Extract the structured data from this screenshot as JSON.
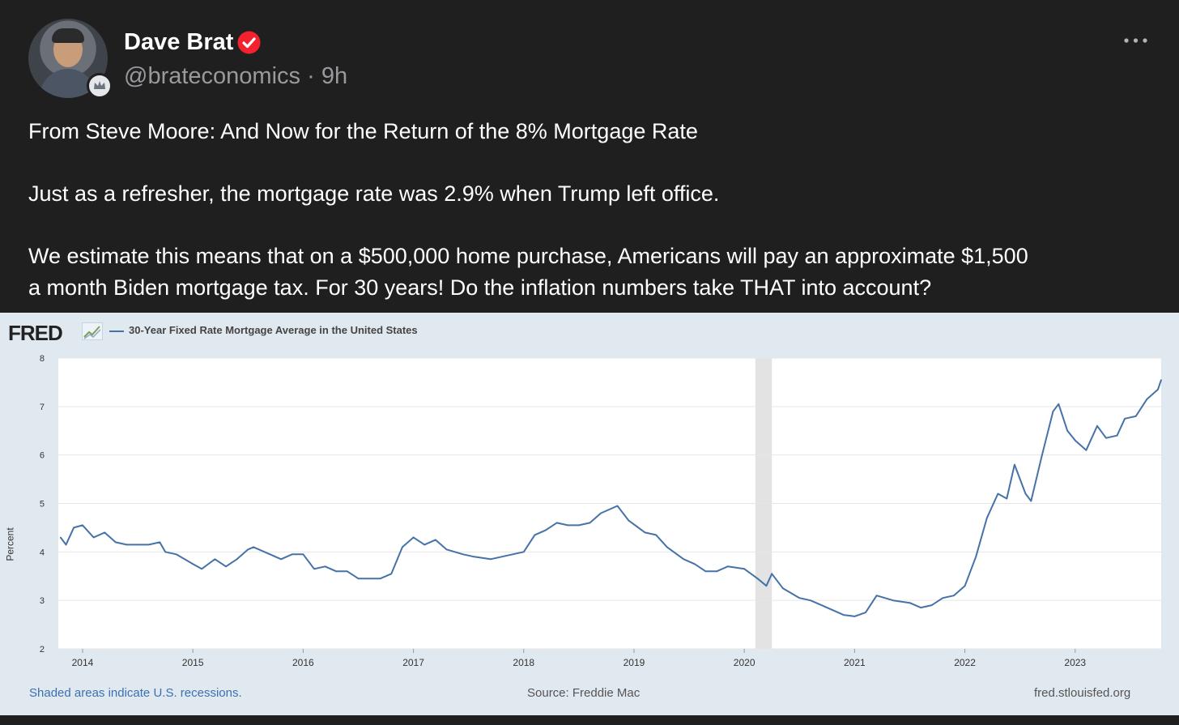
{
  "author": {
    "name": "Dave Brat",
    "handle": "@brateconomics",
    "separator": "·",
    "age": "9h",
    "verified_icon": "verified-check-icon",
    "avatar_badge_icon": "crown-badge-icon"
  },
  "post": {
    "paragraphs": [
      "From Steve Moore:  And Now for the Return of the 8% Mortgage Rate",
      "Just as a refresher, the mortgage rate was 2.9% when Trump left office.",
      "We estimate this means that on a $500,000 home purchase, Americans will pay an approximate $1,500",
      "a month Biden mortgage tax. For 30 years!  Do the inflation numbers take THAT into account?"
    ]
  },
  "menu": {
    "icon": "more-horizontal-icon"
  },
  "colors": {
    "background": "#1f1f20",
    "verified": "#f4212e",
    "chart_line": "#4572a7",
    "chart_bg": "#e1e9f0",
    "recession": "#e3e3e3"
  },
  "chart_data": {
    "type": "line",
    "source_logo": "FRED",
    "series": [
      {
        "name": "30-Year Fixed Rate Mortgage Average in the United States",
        "points": [
          [
            "2013.8",
            4.3
          ],
          [
            "2013.85",
            4.15
          ],
          [
            "2013.92",
            4.5
          ],
          [
            "2014.0",
            4.55
          ],
          [
            "2014.1",
            4.3
          ],
          [
            "2014.2",
            4.4
          ],
          [
            "2014.3",
            4.2
          ],
          [
            "2014.4",
            4.15
          ],
          [
            "2014.5",
            4.15
          ],
          [
            "2014.6",
            4.15
          ],
          [
            "2014.7",
            4.2
          ],
          [
            "2014.75",
            4.0
          ],
          [
            "2014.85",
            3.95
          ],
          [
            "2015.0",
            3.75
          ],
          [
            "2015.08",
            3.65
          ],
          [
            "2015.2",
            3.85
          ],
          [
            "2015.3",
            3.7
          ],
          [
            "2015.4",
            3.85
          ],
          [
            "2015.5",
            4.05
          ],
          [
            "2015.55",
            4.1
          ],
          [
            "2015.7",
            3.95
          ],
          [
            "2015.8",
            3.85
          ],
          [
            "2015.9",
            3.95
          ],
          [
            "2016.0",
            3.95
          ],
          [
            "2016.1",
            3.65
          ],
          [
            "2016.2",
            3.7
          ],
          [
            "2016.3",
            3.6
          ],
          [
            "2016.4",
            3.6
          ],
          [
            "2016.5",
            3.45
          ],
          [
            "2016.6",
            3.45
          ],
          [
            "2016.7",
            3.45
          ],
          [
            "2016.8",
            3.55
          ],
          [
            "2016.9",
            4.1
          ],
          [
            "2017.0",
            4.3
          ],
          [
            "2017.1",
            4.15
          ],
          [
            "2017.2",
            4.25
          ],
          [
            "2017.3",
            4.05
          ],
          [
            "2017.45",
            3.95
          ],
          [
            "2017.55",
            3.9
          ],
          [
            "2017.7",
            3.85
          ],
          [
            "2017.8",
            3.9
          ],
          [
            "2017.9",
            3.95
          ],
          [
            "2018.0",
            4.0
          ],
          [
            "2018.1",
            4.35
          ],
          [
            "2018.2",
            4.45
          ],
          [
            "2018.3",
            4.6
          ],
          [
            "2018.4",
            4.55
          ],
          [
            "2018.5",
            4.55
          ],
          [
            "2018.6",
            4.6
          ],
          [
            "2018.7",
            4.8
          ],
          [
            "2018.85",
            4.95
          ],
          [
            "2018.95",
            4.65
          ],
          [
            "2019.1",
            4.4
          ],
          [
            "2019.2",
            4.35
          ],
          [
            "2019.3",
            4.1
          ],
          [
            "2019.45",
            3.85
          ],
          [
            "2019.55",
            3.75
          ],
          [
            "2019.65",
            3.6
          ],
          [
            "2019.75",
            3.6
          ],
          [
            "2019.85",
            3.7
          ],
          [
            "2020.0",
            3.65
          ],
          [
            "2020.12",
            3.45
          ],
          [
            "2020.2",
            3.3
          ],
          [
            "2020.25",
            3.55
          ],
          [
            "2020.35",
            3.25
          ],
          [
            "2020.5",
            3.05
          ],
          [
            "2020.6",
            3.0
          ],
          [
            "2020.7",
            2.9
          ],
          [
            "2020.8",
            2.8
          ],
          [
            "2020.9",
            2.7
          ],
          [
            "2021.0",
            2.67
          ],
          [
            "2021.1",
            2.75
          ],
          [
            "2021.2",
            3.1
          ],
          [
            "2021.35",
            3.0
          ],
          [
            "2021.5",
            2.95
          ],
          [
            "2021.6",
            2.85
          ],
          [
            "2021.7",
            2.9
          ],
          [
            "2021.8",
            3.05
          ],
          [
            "2021.9",
            3.1
          ],
          [
            "2022.0",
            3.3
          ],
          [
            "2022.1",
            3.9
          ],
          [
            "2022.2",
            4.7
          ],
          [
            "2022.3",
            5.2
          ],
          [
            "2022.38",
            5.1
          ],
          [
            "2022.45",
            5.8
          ],
          [
            "2022.55",
            5.2
          ],
          [
            "2022.6",
            5.05
          ],
          [
            "2022.7",
            6.0
          ],
          [
            "2022.8",
            6.9
          ],
          [
            "2022.85",
            7.05
          ],
          [
            "2022.93",
            6.5
          ],
          [
            "2023.0",
            6.3
          ],
          [
            "2023.1",
            6.1
          ],
          [
            "2023.2",
            6.6
          ],
          [
            "2023.28",
            6.35
          ],
          [
            "2023.38",
            6.4
          ],
          [
            "2023.45",
            6.75
          ],
          [
            "2023.55",
            6.8
          ],
          [
            "2023.65",
            7.15
          ],
          [
            "2023.75",
            7.35
          ],
          [
            "2023.78",
            7.55
          ]
        ]
      }
    ],
    "recessions": [
      [
        "2020.1",
        "2020.25"
      ]
    ],
    "xlim": [
      2013.78,
      2023.78
    ],
    "ylim": [
      2,
      8
    ],
    "x_ticks": [
      "2014",
      "2015",
      "2016",
      "2017",
      "2018",
      "2019",
      "2020",
      "2021",
      "2022",
      "2023"
    ],
    "y_ticks": [
      "2",
      "3",
      "4",
      "5",
      "6",
      "7",
      "8"
    ],
    "ylabel": "Percent",
    "grid": true,
    "footer_note": "Shaded areas indicate U.S. recessions.",
    "source": "Source: Freddie Mac",
    "site": "fred.stlouisfed.org"
  }
}
